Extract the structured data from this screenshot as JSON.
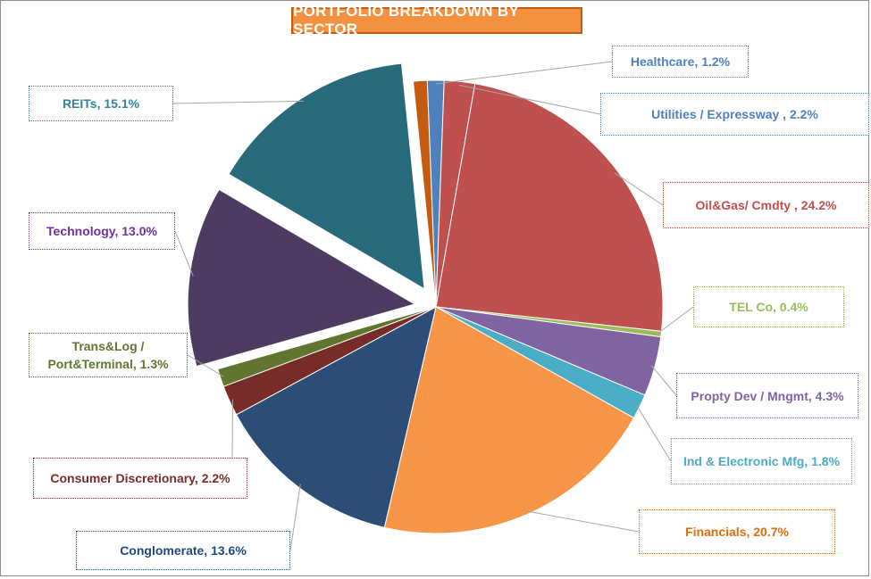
{
  "chart_data": {
    "type": "pie",
    "title": "PORTFOLIO BREAKDOWN BY SECTOR",
    "legend": "none",
    "exploded": [
      "REITs",
      "Technology"
    ],
    "slices": [
      {
        "key": "healthcare",
        "label": "Healthcare, 1.2%",
        "name": "Healthcare",
        "value": 1.2,
        "color": "#4f81bd",
        "label_color": "#4f81bd"
      },
      {
        "key": "utilities",
        "label": "Utilities / Expressway , 2.2%",
        "name": "Utilities / Expressway",
        "value": 2.2,
        "color": "#c0504d",
        "label_color": "#4f81bd"
      },
      {
        "key": "oilgas",
        "label": "Oil&Gas/ Cmdty , 24.2%",
        "name": "Oil&Gas/ Cmdty",
        "value": 24.2,
        "color": "#c0504d",
        "label_color": "#c0504d"
      },
      {
        "key": "telco",
        "label": "TEL Co, 0.4%",
        "name": "TEL Co",
        "value": 0.4,
        "color": "#9bbb59",
        "label_color": "#9bbb59"
      },
      {
        "key": "propty",
        "label": "Propty Dev / Mngmt, 4.3%",
        "name": "Propty Dev / Mngmt",
        "value": 4.3,
        "color": "#8064a2",
        "label_color": "#8064a2"
      },
      {
        "key": "indelec",
        "label": "Ind & Electronic Mfg, 1.8%",
        "name": "Ind & Electronic Mfg",
        "value": 1.8,
        "color": "#4bacc6",
        "label_color": "#4bacc6"
      },
      {
        "key": "financials",
        "label": "Financials,  20.7%",
        "name": "Financials",
        "value": 20.7,
        "color": "#f79646",
        "label_color": "#e46c0a"
      },
      {
        "key": "conglomerate",
        "label": "Conglomerate, 13.6%",
        "name": "Conglomerate",
        "value": 13.6,
        "color": "#2c4d75",
        "label_color": "#1f497d"
      },
      {
        "key": "consumer",
        "label": "Consumer Discretionary, 2.2%",
        "name": "Consumer Discretionary",
        "value": 2.2,
        "color": "#772c2a",
        "label_color": "#772c2a"
      },
      {
        "key": "translog",
        "label": "Trans&Log / Port&Terminal, 1.3%",
        "name": "Trans&Log / Port&Terminal",
        "value": 1.3,
        "color": "#5f7530",
        "label_color": "#5f7530"
      },
      {
        "key": "technology",
        "label": "Technology, 13.0%",
        "name": "Technology",
        "value": 13.0,
        "color": "#4d3b62",
        "label_color": "#7030a0"
      },
      {
        "key": "reits",
        "label": "REITs, 15.1%",
        "name": "REITs",
        "value": 15.1,
        "color": "#276a7c",
        "label_color": "#31849b"
      },
      {
        "key": "other",
        "label": "",
        "name": "",
        "value": 1.0,
        "color": "#c55a11",
        "label_color": "#c55a11"
      }
    ]
  }
}
